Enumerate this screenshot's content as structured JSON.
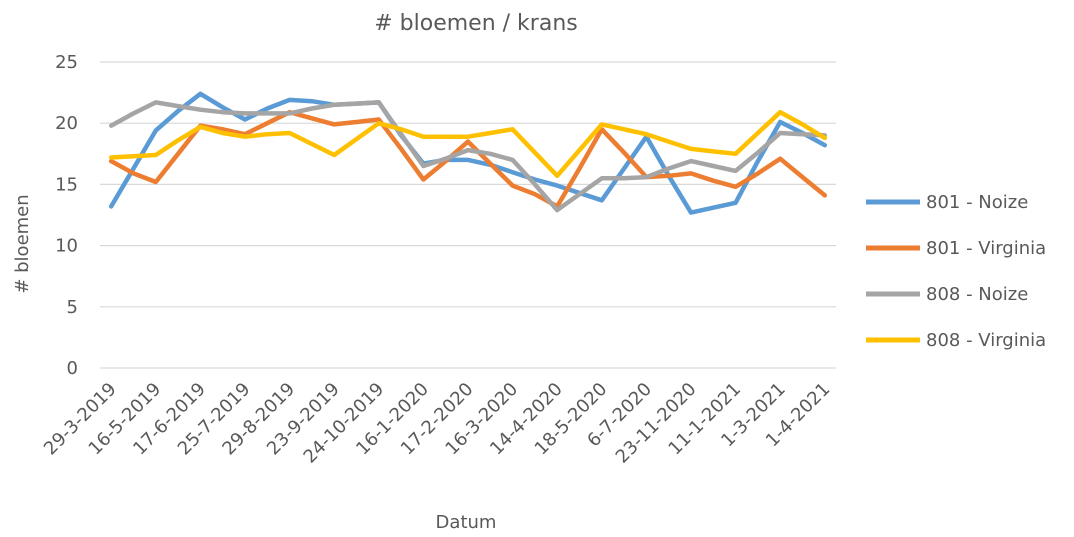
{
  "chart_data": {
    "type": "line",
    "title": "# bloemen / krans",
    "xlabel": "Datum",
    "ylabel": "# bloemen",
    "ylim": [
      0,
      25
    ],
    "yticks": [
      0,
      5,
      10,
      15,
      20,
      25
    ],
    "grid": true,
    "legend_position": "right",
    "categories": [
      "29-3-2019",
      "",
      "16-5-2019",
      "",
      "17-6-2019",
      "",
      "25-7-2019",
      "",
      "29-8-2019",
      "",
      "23-9-2019",
      "",
      "24-10-2019",
      "",
      "16-1-2020",
      "",
      "17-2-2020",
      "",
      "16-3-2020",
      "",
      "14-4-2020",
      "",
      "18-5-2020",
      "",
      "6-7-2020",
      "",
      "23-11-2020",
      "",
      "11-1-2021",
      "",
      "1-3-2021",
      "",
      "1-4-2021"
    ],
    "series": [
      {
        "name": "801 - Noize",
        "color": "#5b9bd5",
        "values": [
          13.2,
          16.3,
          19.4,
          21.0,
          22.4,
          21.3,
          20.3,
          21.2,
          21.9,
          21.8,
          21.5,
          21.6,
          21.7,
          19.0,
          16.7,
          17.0,
          17.0,
          16.6,
          16.0,
          15.4,
          14.9,
          14.3,
          13.7,
          16.3,
          18.9,
          15.7,
          12.7,
          13.1,
          13.5,
          16.9,
          20.1,
          19.2,
          18.2
        ]
      },
      {
        "name": "801 - Virginia",
        "color": "#ed7d31",
        "values": [
          16.9,
          15.9,
          15.2,
          17.5,
          19.8,
          19.5,
          19.1,
          20.0,
          20.9,
          20.4,
          19.9,
          20.1,
          20.3,
          17.9,
          15.4,
          16.9,
          18.5,
          16.7,
          14.9,
          14.2,
          13.2,
          16.3,
          19.5,
          17.6,
          15.6,
          15.7,
          15.9,
          15.3,
          14.8,
          15.9,
          17.1,
          15.6,
          14.1
        ]
      },
      {
        "name": "808 - Noize",
        "color": "#a5a5a5",
        "values": [
          19.8,
          20.8,
          21.7,
          21.4,
          21.1,
          20.9,
          20.8,
          20.8,
          20.8,
          21.2,
          21.5,
          21.6,
          21.7,
          19.1,
          16.5,
          17.1,
          17.8,
          17.5,
          17.0,
          15.0,
          12.9,
          14.2,
          15.5,
          15.5,
          15.6,
          16.3,
          16.9,
          16.5,
          16.1,
          17.6,
          19.2,
          19.1,
          19.0
        ]
      },
      {
        "name": "808 - Virginia",
        "color": "#ffc000",
        "values": [
          17.2,
          17.3,
          17.4,
          18.6,
          19.7,
          19.2,
          18.9,
          19.1,
          19.2,
          18.3,
          17.4,
          18.7,
          20.0,
          19.5,
          18.9,
          18.9,
          18.9,
          19.2,
          19.5,
          17.6,
          15.7,
          17.8,
          19.9,
          19.5,
          19.1,
          18.5,
          17.9,
          17.7,
          17.5,
          19.2,
          20.9,
          19.9,
          18.8
        ]
      }
    ]
  }
}
